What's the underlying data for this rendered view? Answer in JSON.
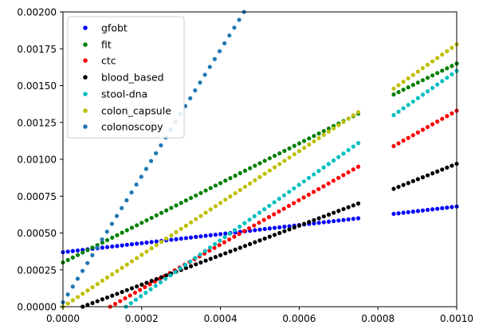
{
  "chart_data": {
    "type": "scatter",
    "title": "",
    "xlabel": "",
    "ylabel": "",
    "xlim": [
      0,
      0.001
    ],
    "ylim": [
      0,
      0.002
    ],
    "x_ticks": [
      "0.0000",
      "0.0002",
      "0.0004",
      "0.0006",
      "0.0008",
      "0.0010"
    ],
    "y_ticks": [
      "0.00000",
      "0.00025",
      "0.00050",
      "0.00075",
      "0.00100",
      "0.00125",
      "0.00150",
      "0.00175",
      "0.00200"
    ],
    "grid": false,
    "legend_position": "top-left",
    "series": [
      {
        "name": "gfobt",
        "color": "#0000ff",
        "segments": [
          {
            "x": [
              0.0,
              0.00075
            ],
            "y": [
              0.00037,
              0.0006
            ]
          },
          {
            "x": [
              0.00084,
              0.001
            ],
            "y": [
              0.00063,
              0.00068
            ]
          }
        ]
      },
      {
        "name": "fit",
        "color": "#008000",
        "segments": [
          {
            "x": [
              0.0,
              0.00075
            ],
            "y": [
              0.0003,
              0.00131
            ]
          },
          {
            "x": [
              0.00084,
              0.001
            ],
            "y": [
              0.00144,
              0.00165
            ]
          }
        ]
      },
      {
        "name": "ctc",
        "color": "#ff0000",
        "segments": [
          {
            "x": [
              0.00012,
              0.00075
            ],
            "y": [
              0.0,
              0.00095
            ]
          },
          {
            "x": [
              0.00084,
              0.001
            ],
            "y": [
              0.00109,
              0.00133
            ]
          }
        ]
      },
      {
        "name": "blood_based",
        "color": "#000000",
        "segments": [
          {
            "x": [
              5e-05,
              0.00075
            ],
            "y": [
              0.0,
              0.0007
            ]
          },
          {
            "x": [
              0.00084,
              0.001
            ],
            "y": [
              0.0008,
              0.00097
            ]
          }
        ]
      },
      {
        "name": "stool-dna",
        "color": "#00bfbf",
        "segments": [
          {
            "x": [
              0.00016,
              0.00075
            ],
            "y": [
              0.0,
              0.00111
            ]
          },
          {
            "x": [
              0.00084,
              0.001
            ],
            "y": [
              0.0013,
              0.0016
            ]
          }
        ]
      },
      {
        "name": "colon_capsule",
        "color": "#bfbf00",
        "segments": [
          {
            "x": [
              0.0,
              0.00075
            ],
            "y": [
              0.0,
              0.00132
            ]
          },
          {
            "x": [
              0.00084,
              0.001
            ],
            "y": [
              0.00148,
              0.00178
            ]
          }
        ]
      },
      {
        "name": "colonoscopy",
        "color": "#1f77b4",
        "segments": [
          {
            "x": [
              0.0,
              0.00046
            ],
            "y": [
              3e-05,
              0.002
            ]
          }
        ]
      }
    ]
  }
}
